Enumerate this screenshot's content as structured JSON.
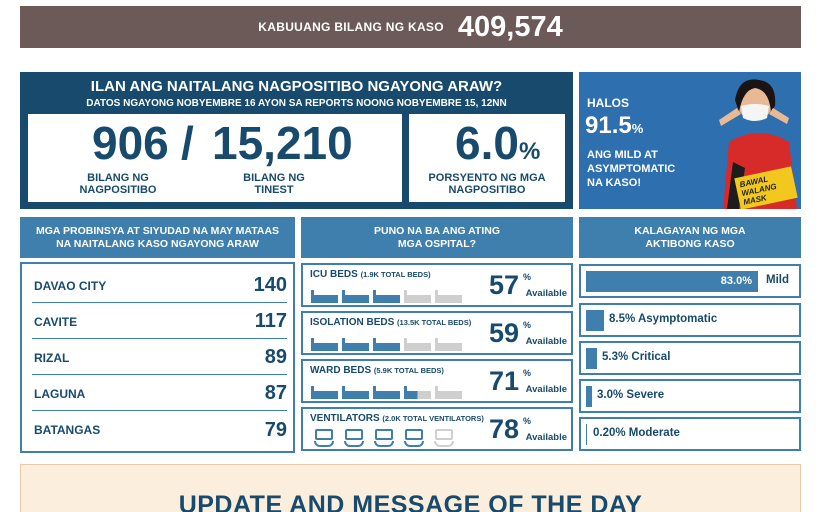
{
  "total": {
    "label": "KABUUANG BILANG NG KASO",
    "value": "409,574"
  },
  "positivity": {
    "title": "ILAN ANG NAITALANG NAGPOSITIBO NGAYONG ARAW?",
    "subtitle": "DATOS NGAYONG NOBYEMBRE 16 AYON SA REPORTS NOONG NOBYEMBRE 15, 12NN",
    "positive_value": "906",
    "separator": "/",
    "tested_value": "15,210",
    "positive_label_1": "BILANG NG",
    "positive_label_2": "NAGPOSITIBO",
    "tested_label_1": "BILANG NG",
    "tested_label_2": "TINEST",
    "rate_value": "6.0",
    "rate_unit": "%",
    "rate_label_1": "PORSYENTO NG MGA",
    "rate_label_2": "NAGPOSITIBO"
  },
  "promo": {
    "halos": "HALOS",
    "value": "91.5",
    "unit": "%",
    "line1": "ANG MILD AT",
    "line2": "ASYMPTOMATIC",
    "line3": "NA KASO!",
    "sign_1": "BAWAL",
    "sign_2": "WALANG",
    "sign_3": "MASK"
  },
  "headers": {
    "provinces_1": "MGA PROBINSYA AT SIYUDAD NA MAY MATAAS",
    "provinces_2": "NA NAITALANG KASO NGAYONG ARAW",
    "hospitals_1": "PUNO NA BA ANG ATING",
    "hospitals_2": "MGA OSPITAL?",
    "status_1": "KALAGAYAN NG MGA",
    "status_2": "AKTIBONG KASO"
  },
  "provinces": [
    {
      "name": "DAVAO CITY",
      "value": "140"
    },
    {
      "name": "CAVITE",
      "value": "117"
    },
    {
      "name": "RIZAL",
      "value": "89"
    },
    {
      "name": "LAGUNA",
      "value": "87"
    },
    {
      "name": "BATANGAS",
      "value": "79"
    }
  ],
  "beds": [
    {
      "name": "ICU BEDS",
      "detail": "(1.9K TOTAL BEDS)",
      "pct": "57",
      "sym": "%",
      "avail": "Available",
      "icon": "bed-icon",
      "filled_fraction": 0.6
    },
    {
      "name": "ISOLATION BEDS",
      "detail": "(13.5K TOTAL BEDS)",
      "pct": "59",
      "sym": "%",
      "avail": "Available",
      "icon": "bed-icon",
      "filled_fraction": 0.6
    },
    {
      "name": "WARD BEDS",
      "detail": "(5.9K TOTAL BEDS)",
      "pct": "71",
      "sym": "%",
      "avail": "Available",
      "icon": "bed-icon",
      "filled_fraction": 0.7
    },
    {
      "name": "VENTILATORS",
      "detail": "(2.0K TOTAL VENTILATORS)",
      "pct": "78",
      "sym": "%",
      "avail": "Available",
      "icon": "ventilator-icon",
      "filled_fraction": 0.8
    }
  ],
  "status": [
    {
      "label": "Mild",
      "value": "83.0%",
      "fraction": 0.83
    },
    {
      "label": "8.5% Asymptomatic",
      "fraction": 0.085
    },
    {
      "label": "5.3% Critical",
      "fraction": 0.053
    },
    {
      "label": "3.0% Severe",
      "fraction": 0.03
    },
    {
      "label": "0.20% Moderate",
      "fraction": 0.002
    }
  ],
  "motd": {
    "title": "UPDATE AND MESSAGE OF THE DAY"
  },
  "colors": {
    "navy": "#174a6c",
    "blue": "#3f7fae",
    "brown": "#6b5a58",
    "promo_blue": "#2e6fb0",
    "empty": "#cfcfcf",
    "cream": "#fbeedd"
  }
}
